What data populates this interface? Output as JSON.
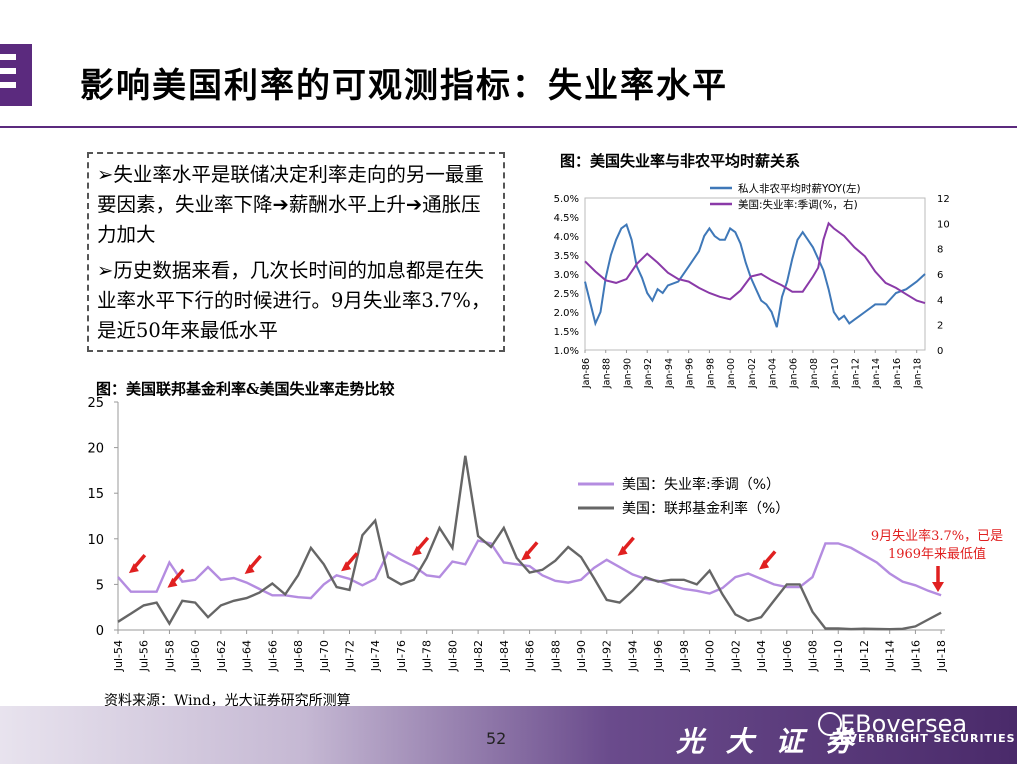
{
  "title": "影响美国利率的可观测指标：失业率水平",
  "bullets": [
    {
      "marker": "➢",
      "text": "失业率水平是联储决定利率走向的另一最重要因素，失业率下降➔薪酬水平上升➔通胀压力加大"
    },
    {
      "marker": "➢",
      "text": "历史数据来看，几次长时间的加息都是在失业率水平下行的时候进行。9月失业率3.7%，是近50年来最低水平"
    }
  ],
  "source": "资料来源：Wind，光大证券研究所测算",
  "page_number": "52",
  "brand": {
    "cn": "光 大 证 券",
    "en": "EBoversea",
    "en_sub": "EVERBRIGHT SECURITIES"
  },
  "colors": {
    "purple_brand": "#5b2a7e",
    "unemployment_line": "#b48ce0",
    "wage_line": "#3f78b8",
    "unemp_small": "#8a3aa8",
    "fed_line": "#666666",
    "arrow": "#e02020"
  },
  "chart_data": [
    {
      "id": "wage-vs-unemployment",
      "type": "line",
      "title": "图：美国失业率与非农平均时薪关系",
      "x_ticks": [
        "Jan-86",
        "Jan-88",
        "Jan-90",
        "Jan-92",
        "Jan-94",
        "Jan-96",
        "Jan-98",
        "Jan-00",
        "Jan-02",
        "Jan-04",
        "Jan-06",
        "Jan-08",
        "Jan-10",
        "Jan-12",
        "Jan-14",
        "Jan-16",
        "Jan-18"
      ],
      "x_range": [
        1986,
        2018.8
      ],
      "y_left": {
        "ticks": [
          "1.0%",
          "1.5%",
          "2.0%",
          "2.5%",
          "3.0%",
          "3.5%",
          "4.0%",
          "4.5%",
          "5.0%"
        ],
        "range": [
          1.0,
          5.0
        ]
      },
      "y_right": {
        "ticks": [
          "0",
          "2",
          "4",
          "6",
          "8",
          "10",
          "12"
        ],
        "range": [
          0,
          12
        ]
      },
      "series": [
        {
          "name": "私人非农平均时薪YOY(左)",
          "axis": "left",
          "x": [
            1986,
            1987,
            1987.5,
            1988,
            1988.5,
            1989,
            1989.5,
            1990,
            1990.5,
            1991,
            1991.5,
            1992,
            1992.5,
            1993,
            1993.5,
            1994,
            1995,
            1996,
            1997,
            1997.5,
            1998,
            1998.5,
            1999,
            1999.5,
            2000,
            2000.5,
            2001,
            2001.5,
            2002,
            2002.5,
            2003,
            2003.5,
            2004,
            2004.5,
            2005,
            2005.5,
            2006,
            2006.5,
            2007,
            2007.5,
            2008,
            2008.5,
            2009,
            2009.5,
            2010,
            2010.5,
            2011,
            2011.5,
            2012,
            2012.5,
            2013,
            2014,
            2015,
            2016,
            2017,
            2018,
            2018.8
          ],
          "y": [
            2.8,
            1.7,
            2.0,
            2.9,
            3.5,
            3.9,
            4.2,
            4.3,
            3.9,
            3.2,
            2.9,
            2.5,
            2.3,
            2.6,
            2.5,
            2.7,
            2.8,
            3.2,
            3.6,
            4.0,
            4.2,
            4.0,
            3.9,
            3.9,
            4.2,
            4.1,
            3.8,
            3.3,
            2.9,
            2.6,
            2.3,
            2.2,
            2.0,
            1.6,
            2.4,
            2.8,
            3.4,
            3.9,
            4.1,
            3.9,
            3.7,
            3.4,
            3.1,
            2.6,
            2.0,
            1.8,
            1.9,
            1.7,
            1.8,
            1.9,
            2.0,
            2.2,
            2.2,
            2.5,
            2.6,
            2.8,
            3.0
          ]
        },
        {
          "name": "美国:失业率:季调(%，右)",
          "axis": "right",
          "x": [
            1986,
            1987,
            1988,
            1989,
            1990,
            1991,
            1992,
            1993,
            1994,
            1995,
            1996,
            1997,
            1998,
            1999,
            2000,
            2001,
            2002,
            2003,
            2004,
            2005,
            2006,
            2007,
            2008,
            2008.5,
            2009,
            2009.5,
            2010,
            2011,
            2012,
            2013,
            2014,
            2015,
            2016,
            2017,
            2018,
            2018.8
          ],
          "y": [
            7.0,
            6.2,
            5.5,
            5.3,
            5.6,
            6.8,
            7.6,
            6.9,
            6.1,
            5.6,
            5.4,
            4.9,
            4.5,
            4.2,
            4.0,
            4.7,
            5.8,
            6.0,
            5.5,
            5.1,
            4.6,
            4.6,
            5.8,
            6.5,
            8.7,
            10.0,
            9.6,
            9.0,
            8.1,
            7.4,
            6.2,
            5.3,
            4.9,
            4.4,
            3.9,
            3.7
          ]
        }
      ]
    },
    {
      "id": "fed-funds-vs-unemployment",
      "type": "line",
      "title": "图：美国联邦基金利率&美国失业率走势比较",
      "x_ticks": [
        "Jul-54",
        "Jul-56",
        "Jul-58",
        "Jul-60",
        "Jul-62",
        "Jul-64",
        "Jul-66",
        "Jul-68",
        "Jul-70",
        "Jul-72",
        "Jul-74",
        "Jul-76",
        "Jul-78",
        "Jul-80",
        "Jul-82",
        "Jul-84",
        "Jul-86",
        "Jul-88",
        "Jul-90",
        "Jul-92",
        "Jul-94",
        "Jul-96",
        "Jul-98",
        "Jul-00",
        "Jul-02",
        "Jul-04",
        "Jul-06",
        "Jul-08",
        "Jul-10",
        "Jul-12",
        "Jul-14",
        "Jul-16",
        "Jul-18"
      ],
      "x_range": [
        1954.5,
        2018.8
      ],
      "y": {
        "ticks": [
          "0",
          "5",
          "10",
          "15",
          "20",
          "25"
        ],
        "range": [
          0,
          25
        ]
      },
      "series": [
        {
          "name": "美国：失业率:季调（%）",
          "x": [
            1954.5,
            1955.5,
            1956.5,
            1957.5,
            1958.5,
            1959.5,
            1960.5,
            1961.5,
            1962.5,
            1963.5,
            1964.5,
            1965.5,
            1966.5,
            1967.5,
            1968.5,
            1969.5,
            1970.5,
            1971.5,
            1972.5,
            1973.5,
            1974.5,
            1975.5,
            1976.5,
            1977.5,
            1978.5,
            1979.5,
            1980.5,
            1981.5,
            1982.5,
            1983.5,
            1984.5,
            1985.5,
            1986.5,
            1987.5,
            1988.5,
            1989.5,
            1990.5,
            1991.5,
            1992.5,
            1993.5,
            1994.5,
            1995.5,
            1996.5,
            1997.5,
            1998.5,
            1999.5,
            2000.5,
            2001.5,
            2002.5,
            2003.5,
            2004.5,
            2005.5,
            2006.5,
            2007.5,
            2008.5,
            2009.5,
            2010.5,
            2011.5,
            2012.5,
            2013.5,
            2014.5,
            2015.5,
            2016.5,
            2017.5,
            2018.5
          ],
          "y": [
            5.8,
            4.2,
            4.2,
            4.2,
            7.4,
            5.3,
            5.5,
            6.9,
            5.5,
            5.7,
            5.2,
            4.5,
            3.8,
            3.8,
            3.6,
            3.5,
            5.0,
            6.0,
            5.6,
            4.9,
            5.6,
            8.5,
            7.7,
            7.0,
            6.0,
            5.8,
            7.5,
            7.2,
            9.8,
            9.5,
            7.4,
            7.2,
            7.0,
            6.0,
            5.4,
            5.2,
            5.5,
            6.8,
            7.7,
            6.9,
            6.1,
            5.6,
            5.4,
            4.9,
            4.5,
            4.3,
            4.0,
            4.6,
            5.8,
            6.2,
            5.6,
            5.0,
            4.7,
            4.7,
            5.8,
            9.5,
            9.5,
            9.0,
            8.2,
            7.4,
            6.2,
            5.3,
            4.9,
            4.3,
            3.8
          ]
        },
        {
          "name": "美国：联邦基金利率（%）",
          "x": [
            1954.5,
            1955.5,
            1956.5,
            1957.5,
            1958.5,
            1959.5,
            1960.5,
            1961.5,
            1962.5,
            1963.5,
            1964.5,
            1965.5,
            1966.5,
            1967.5,
            1968.5,
            1969.5,
            1970.5,
            1971.5,
            1972.5,
            1973.5,
            1974.5,
            1975.5,
            1976.5,
            1977.5,
            1978.5,
            1979.5,
            1980.5,
            1981.5,
            1982.5,
            1983.5,
            1984.5,
            1985.5,
            1986.5,
            1987.5,
            1988.5,
            1989.5,
            1990.5,
            1991.5,
            1992.5,
            1993.5,
            1994.5,
            1995.5,
            1996.5,
            1997.5,
            1998.5,
            1999.5,
            2000.5,
            2001.5,
            2002.5,
            2003.5,
            2004.5,
            2005.5,
            2006.5,
            2007.5,
            2008.5,
            2009.5,
            2010.5,
            2011.5,
            2012.5,
            2013.5,
            2014.5,
            2015.5,
            2016.5,
            2017.5,
            2018.5
          ],
          "y": [
            0.9,
            1.8,
            2.7,
            3.0,
            0.7,
            3.2,
            3.0,
            1.4,
            2.7,
            3.2,
            3.5,
            4.1,
            5.1,
            3.9,
            6.0,
            9.0,
            7.2,
            4.7,
            4.4,
            10.4,
            12.0,
            5.8,
            5.0,
            5.5,
            7.9,
            11.2,
            9.0,
            19.1,
            10.3,
            9.1,
            11.2,
            7.9,
            6.3,
            6.6,
            7.6,
            9.1,
            8.0,
            5.7,
            3.3,
            3.0,
            4.3,
            5.8,
            5.3,
            5.5,
            5.5,
            5.0,
            6.5,
            3.9,
            1.7,
            1.0,
            1.4,
            3.2,
            5.0,
            5.0,
            2.0,
            0.16,
            0.18,
            0.1,
            0.14,
            0.11,
            0.09,
            0.13,
            0.4,
            1.15,
            1.9
          ]
        }
      ],
      "annotation": "9月失业率3.7%，已是1969年来最低值"
    }
  ]
}
